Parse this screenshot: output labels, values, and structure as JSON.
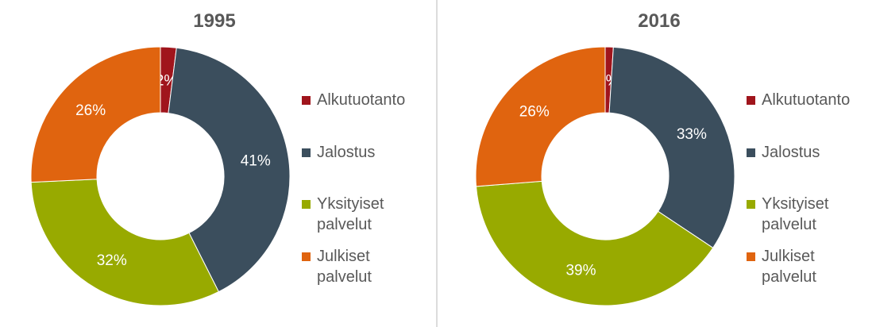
{
  "chart_data": [
    {
      "type": "donut",
      "title": "1995",
      "categories": [
        "Alkutuotanto",
        "Jalostus",
        "Yksityiset palvelut",
        "Julkiset palvelut"
      ],
      "values": [
        2,
        41,
        32,
        26
      ],
      "value_labels": [
        "2%",
        "41%",
        "32%",
        "26%"
      ],
      "colors": [
        "#a0151c",
        "#3b4e5d",
        "#98aa00",
        "#e0640f"
      ],
      "legend": "right"
    },
    {
      "type": "donut",
      "title": "2016",
      "categories": [
        "Alkutuotanto",
        "Jalostus",
        "Yksityiset palvelut",
        "Julkiset palvelut"
      ],
      "values": [
        1,
        33,
        39,
        26
      ],
      "value_labels": [
        "1%",
        "33%",
        "39%",
        "26%"
      ],
      "colors": [
        "#a0151c",
        "#3b4e5d",
        "#98aa00",
        "#e0640f"
      ],
      "legend": "right"
    }
  ]
}
